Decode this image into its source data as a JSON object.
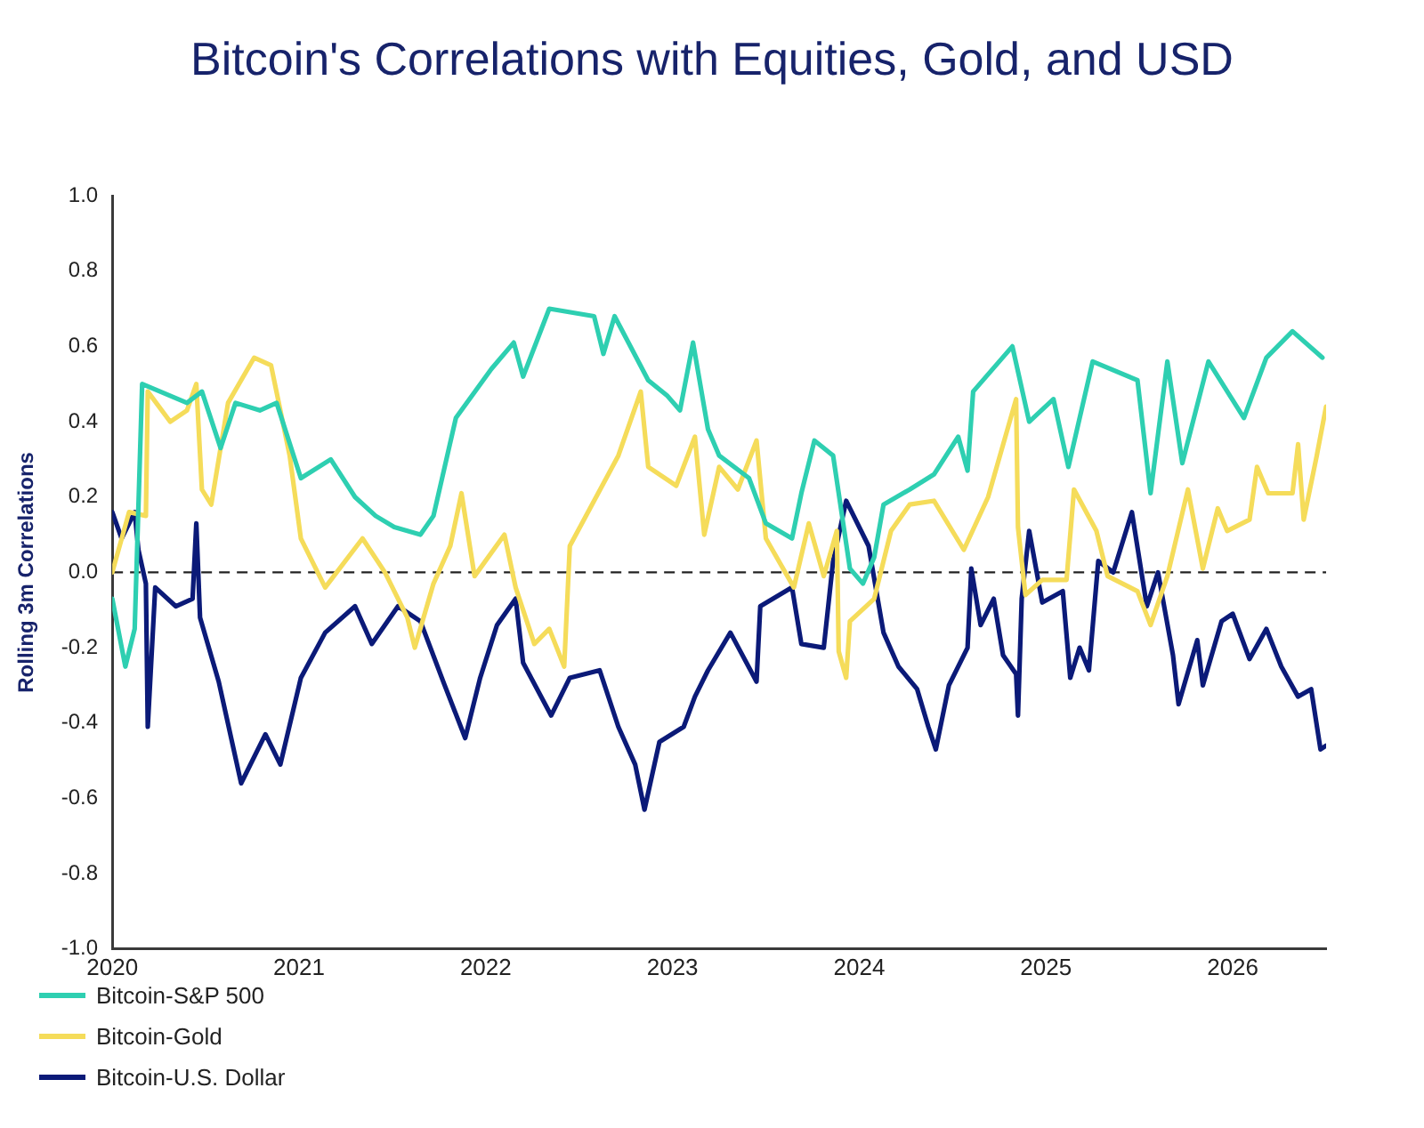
{
  "chart_data": {
    "type": "line",
    "title": "Bitcoin's Correlations with Equities, Gold, and USD",
    "ylabel": "Rolling 3m Correlations",
    "xlim": [
      2020,
      2026.5
    ],
    "xticks": [
      2020,
      2021,
      2022,
      2023,
      2024,
      2025,
      2026
    ],
    "ylim": [
      -1,
      1
    ],
    "yticks": [
      {
        "value": -1,
        "label": "-1.0"
      },
      {
        "value": -0.8,
        "label": "-0.8"
      },
      {
        "value": -0.6,
        "label": "-0.6"
      },
      {
        "value": -0.4,
        "label": "-0.4"
      },
      {
        "value": -0.2,
        "label": "-0.2"
      },
      {
        "value": 0,
        "label": "0.0"
      },
      {
        "value": 0.2,
        "label": "0.2"
      },
      {
        "value": 0.4,
        "label": "0.4"
      },
      {
        "value": 0.6,
        "label": "0.6"
      },
      {
        "value": 0.8,
        "label": "0.8"
      },
      {
        "value": 1,
        "label": "1.0"
      }
    ],
    "grid": false,
    "legend": "bottom left",
    "marker": "none",
    "line_style": "solid",
    "ref_lines": [
      {
        "axis": "y",
        "value": 0,
        "color": "#222222",
        "line_style": "dashed"
      }
    ],
    "series": [
      {
        "name": "Bitcoin-S&P 500",
        "color": "#2ecfb1",
        "x": [
          2020.0,
          2020.07,
          2020.12,
          2020.16,
          2020.4,
          2020.48,
          2020.58,
          2020.66,
          2020.79,
          2020.88,
          2021.01,
          2021.17,
          2021.3,
          2021.41,
          2021.51,
          2021.65,
          2021.72,
          2021.84,
          2022.03,
          2022.15,
          2022.2,
          2022.34,
          2022.58,
          2022.63,
          2022.69,
          2022.87,
          2022.97,
          2023.04,
          2023.11,
          2023.19,
          2023.25,
          2023.41,
          2023.5,
          2023.64,
          2023.69,
          2023.76,
          2023.86,
          2023.95,
          2024.02,
          2024.08,
          2024.13,
          2024.27,
          2024.4,
          2024.53,
          2024.58,
          2024.61,
          2024.82,
          2024.91,
          2025.04,
          2025.12,
          2025.25,
          2025.49,
          2025.56,
          2025.65,
          2025.73,
          2025.87,
          2026.06,
          2026.18,
          2026.32,
          2026.48
        ],
        "values": [
          -0.07,
          -0.25,
          -0.15,
          0.5,
          0.45,
          0.48,
          0.33,
          0.45,
          0.43,
          0.45,
          0.25,
          0.3,
          0.2,
          0.15,
          0.12,
          0.1,
          0.15,
          0.41,
          0.54,
          0.61,
          0.52,
          0.7,
          0.68,
          0.58,
          0.68,
          0.51,
          0.47,
          0.43,
          0.61,
          0.38,
          0.31,
          0.25,
          0.13,
          0.09,
          0.21,
          0.35,
          0.31,
          0.01,
          -0.03,
          0.04,
          0.18,
          0.22,
          0.26,
          0.36,
          0.27,
          0.48,
          0.6,
          0.4,
          0.46,
          0.28,
          0.56,
          0.51,
          0.21,
          0.56,
          0.29,
          0.56,
          0.41,
          0.57,
          0.64,
          0.57
        ]
      },
      {
        "name": "Bitcoin-Gold",
        "color": "#f5dc5a",
        "x": [
          2020.0,
          2020.09,
          2020.18,
          2020.19,
          2020.31,
          2020.4,
          2020.45,
          2020.48,
          2020.53,
          2020.62,
          2020.76,
          2020.85,
          2020.95,
          2021.01,
          2021.14,
          2021.34,
          2021.46,
          2021.58,
          2021.62,
          2021.72,
          2021.81,
          2021.87,
          2021.94,
          2022.1,
          2022.16,
          2022.26,
          2022.34,
          2022.42,
          2022.45,
          2022.58,
          2022.71,
          2022.83,
          2022.87,
          2023.02,
          2023.12,
          2023.17,
          2023.25,
          2023.35,
          2023.45,
          2023.5,
          2023.65,
          2023.73,
          2023.81,
          2023.88,
          2023.89,
          2023.93,
          2023.95,
          2024.08,
          2024.17,
          2024.27,
          2024.4,
          2024.56,
          2024.69,
          2024.84,
          2024.85,
          2024.89,
          2024.98,
          2025.11,
          2025.15,
          2025.27,
          2025.33,
          2025.49,
          2025.56,
          2025.65,
          2025.76,
          2025.84,
          2025.92,
          2025.97,
          2026.09,
          2026.13,
          2026.19,
          2026.32,
          2026.35,
          2026.38,
          2026.45,
          2026.5
        ],
        "values": [
          0.0,
          0.16,
          0.15,
          0.48,
          0.4,
          0.43,
          0.5,
          0.22,
          0.18,
          0.45,
          0.57,
          0.55,
          0.31,
          0.09,
          -0.04,
          0.09,
          0.0,
          -0.12,
          -0.2,
          -0.03,
          0.07,
          0.21,
          -0.01,
          0.1,
          -0.04,
          -0.19,
          -0.15,
          -0.25,
          0.07,
          0.19,
          0.31,
          0.48,
          0.28,
          0.23,
          0.36,
          0.1,
          0.28,
          0.22,
          0.35,
          0.09,
          -0.04,
          0.13,
          -0.01,
          0.11,
          -0.21,
          -0.28,
          -0.13,
          -0.07,
          0.11,
          0.18,
          0.19,
          0.06,
          0.2,
          0.46,
          0.12,
          -0.06,
          -0.02,
          -0.02,
          0.22,
          0.11,
          -0.01,
          -0.05,
          -0.14,
          -0.01,
          0.22,
          0.01,
          0.17,
          0.11,
          0.14,
          0.28,
          0.21,
          0.21,
          0.34,
          0.14,
          0.31,
          0.44
        ]
      },
      {
        "name": "Bitcoin-U.S. Dollar",
        "color": "#0b1a78",
        "x": [
          2020.0,
          2020.05,
          2020.12,
          2020.14,
          2020.18,
          2020.19,
          2020.23,
          2020.34,
          2020.43,
          2020.45,
          2020.47,
          2020.57,
          2020.69,
          2020.82,
          2020.9,
          2021.01,
          2021.14,
          2021.3,
          2021.39,
          2021.53,
          2021.65,
          2021.78,
          2021.89,
          2021.97,
          2022.06,
          2022.16,
          2022.2,
          2022.35,
          2022.45,
          2022.61,
          2022.71,
          2022.8,
          2022.85,
          2022.93,
          2023.06,
          2023.12,
          2023.19,
          2023.31,
          2023.45,
          2023.47,
          2023.64,
          2023.69,
          2023.81,
          2023.86,
          2023.93,
          2024.05,
          2024.13,
          2024.21,
          2024.31,
          2024.37,
          2024.41,
          2024.48,
          2024.58,
          2024.6,
          2024.65,
          2024.72,
          2024.77,
          2024.84,
          2024.85,
          2024.87,
          2024.91,
          2024.98,
          2025.09,
          2025.13,
          2025.18,
          2025.23,
          2025.28,
          2025.36,
          2025.46,
          2025.54,
          2025.6,
          2025.68,
          2025.71,
          2025.81,
          2025.84,
          2025.94,
          2026.0,
          2026.09,
          2026.18,
          2026.26,
          2026.35,
          2026.42,
          2026.47,
          2026.5
        ],
        "values": [
          0.16,
          0.09,
          0.16,
          0.06,
          -0.03,
          -0.41,
          -0.04,
          -0.09,
          -0.07,
          0.13,
          -0.12,
          -0.29,
          -0.56,
          -0.43,
          -0.51,
          -0.28,
          -0.16,
          -0.09,
          -0.19,
          -0.09,
          -0.13,
          -0.3,
          -0.44,
          -0.28,
          -0.14,
          -0.07,
          -0.24,
          -0.38,
          -0.28,
          -0.26,
          -0.41,
          -0.51,
          -0.63,
          -0.45,
          -0.41,
          -0.33,
          -0.26,
          -0.16,
          -0.29,
          -0.09,
          -0.04,
          -0.19,
          -0.2,
          0.03,
          0.19,
          0.07,
          -0.16,
          -0.25,
          -0.31,
          -0.41,
          -0.47,
          -0.3,
          -0.2,
          0.01,
          -0.14,
          -0.07,
          -0.22,
          -0.27,
          -0.38,
          -0.07,
          0.11,
          -0.08,
          -0.05,
          -0.28,
          -0.2,
          -0.26,
          0.03,
          0.0,
          0.16,
          -0.09,
          0.0,
          -0.22,
          -0.35,
          -0.18,
          -0.3,
          -0.13,
          -0.11,
          -0.23,
          -0.15,
          -0.25,
          -0.33,
          -0.31,
          -0.47,
          -0.46
        ]
      }
    ]
  }
}
